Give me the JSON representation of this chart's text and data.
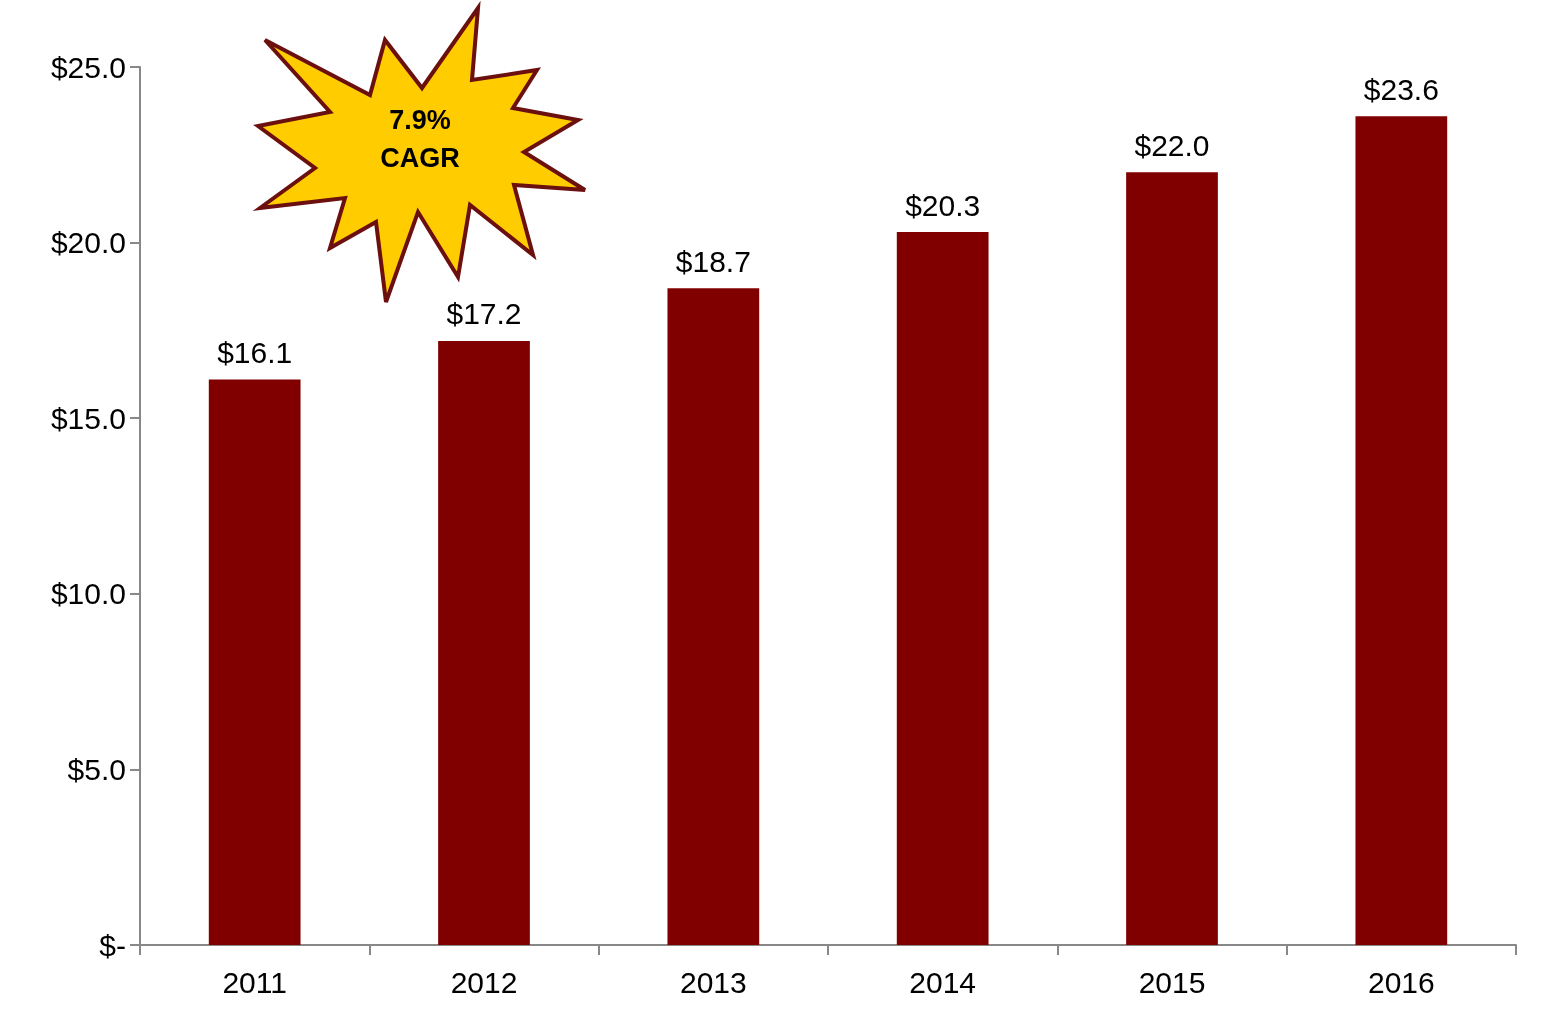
{
  "chart_data": {
    "type": "bar",
    "categories": [
      "2011",
      "2012",
      "2013",
      "2014",
      "2015",
      "2016"
    ],
    "values": [
      16.1,
      17.2,
      18.7,
      20.3,
      22.0,
      23.6
    ],
    "value_labels": [
      "$16.1",
      "$17.2",
      "$18.7",
      "$20.3",
      "$22.0",
      "$23.6"
    ],
    "color": "#800000",
    "ylim": [
      0,
      25
    ],
    "yticks": [
      {
        "value": 0,
        "label": "$-"
      },
      {
        "value": 5,
        "label": "$5.0"
      },
      {
        "value": 10,
        "label": "$10.0"
      },
      {
        "value": 15,
        "label": "$15.0"
      },
      {
        "value": 20,
        "label": "$20.0"
      },
      {
        "value": 25,
        "label": "$25.0"
      }
    ],
    "grid": false,
    "annotations": [
      "7.9%\nCAGR"
    ]
  }
}
